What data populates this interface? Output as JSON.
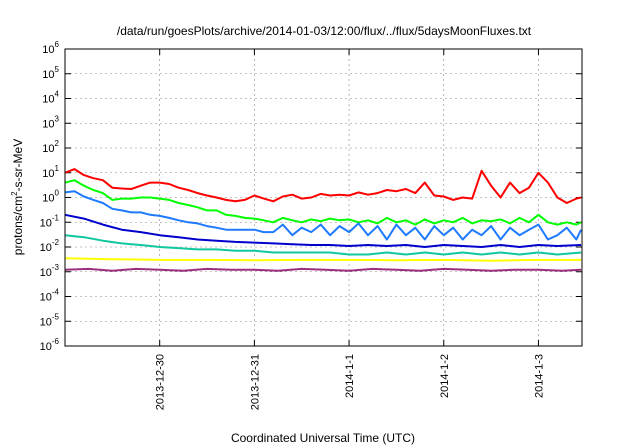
{
  "chart_data": {
    "type": "line",
    "title": "/data/run/goesPlots/archive/2014-01-03/12:00/flux/../flux/5daysMoonFluxes.txt",
    "xlabel": "Coordinated Universal Time (UTC)",
    "ylabel": {
      "prefix": "protons/cm",
      "sup": "2",
      "suffix": "-s-sr-MeV"
    },
    "yscale": "log",
    "ylim": [
      1e-06,
      1000000.0
    ],
    "xlim": [
      "2013-12-29 01:00",
      "2014-01-03 12:00"
    ],
    "grid": "dashed major gridlines",
    "legend": "none",
    "y_ticks": [
      {
        "exp": -6,
        "label": "10",
        "sup": "-6"
      },
      {
        "exp": -5,
        "label": "10",
        "sup": "-5"
      },
      {
        "exp": -4,
        "label": "10",
        "sup": "-4"
      },
      {
        "exp": -3,
        "label": "10",
        "sup": "-3"
      },
      {
        "exp": -2,
        "label": "10",
        "sup": "-2"
      },
      {
        "exp": -1,
        "label": "10",
        "sup": "-1"
      },
      {
        "exp": 0,
        "label": "10",
        "sup": "0"
      },
      {
        "exp": 1,
        "label": "10",
        "sup": "1"
      },
      {
        "exp": 2,
        "label": "10",
        "sup": "2"
      },
      {
        "exp": 3,
        "label": "10",
        "sup": "3"
      },
      {
        "exp": 4,
        "label": "10",
        "sup": "4"
      },
      {
        "exp": 5,
        "label": "10",
        "sup": "5"
      },
      {
        "exp": 6,
        "label": "10",
        "sup": "6"
      }
    ],
    "x_ticks": [
      {
        "day": 1,
        "label": "2013-12-30"
      },
      {
        "day": 2,
        "label": "2013-12-31"
      },
      {
        "day": 3,
        "label": "2014-1-1"
      },
      {
        "day": 4,
        "label": "2014-1-2"
      },
      {
        "day": 5,
        "label": "2014-1-3"
      }
    ],
    "series": [
      {
        "color": "#ff0000",
        "x": [
          0,
          0.1,
          0.2,
          0.3,
          0.4,
          0.5,
          0.6,
          0.7,
          0.8,
          0.9,
          1.0,
          1.1,
          1.2,
          1.3,
          1.4,
          1.5,
          1.6,
          1.7,
          1.8,
          1.9,
          2.0,
          2.1,
          2.2,
          2.3,
          2.4,
          2.5,
          2.6,
          2.7,
          2.8,
          2.9,
          3.0,
          3.1,
          3.2,
          3.3,
          3.4,
          3.5,
          3.6,
          3.7,
          3.8,
          3.9,
          4.0,
          4.1,
          4.2,
          4.3,
          4.4,
          4.5,
          4.6,
          4.7,
          4.8,
          4.9,
          5.0,
          5.1,
          5.2,
          5.3,
          5.4,
          5.45
        ],
        "y": [
          10,
          14,
          8,
          6,
          5,
          2.5,
          2.3,
          2.2,
          3,
          4,
          4,
          3.5,
          2.5,
          2,
          1.5,
          1.2,
          1,
          0.8,
          0.7,
          0.8,
          1.2,
          0.9,
          0.7,
          1.1,
          1.3,
          0.9,
          1,
          1.4,
          1.2,
          1.3,
          1.2,
          1.6,
          1.3,
          1.5,
          2,
          1.8,
          2.2,
          1.5,
          4,
          1.2,
          1.1,
          0.8,
          1,
          0.9,
          12,
          3,
          1,
          4,
          1.5,
          2.5,
          10,
          4,
          1,
          0.6,
          0.9,
          1
        ]
      },
      {
        "color": "#00ff00",
        "x": [
          0,
          0.1,
          0.2,
          0.3,
          0.4,
          0.5,
          0.6,
          0.7,
          0.8,
          0.9,
          1.0,
          1.1,
          1.2,
          1.3,
          1.4,
          1.5,
          1.6,
          1.7,
          1.8,
          1.9,
          2.0,
          2.1,
          2.2,
          2.3,
          2.4,
          2.5,
          2.6,
          2.7,
          2.8,
          2.9,
          3.0,
          3.1,
          3.2,
          3.3,
          3.4,
          3.5,
          3.6,
          3.7,
          3.8,
          3.9,
          4.0,
          4.1,
          4.2,
          4.3,
          4.4,
          4.5,
          4.6,
          4.7,
          4.8,
          4.9,
          5.0,
          5.1,
          5.2,
          5.3,
          5.4,
          5.45
        ],
        "y": [
          4,
          5,
          3,
          2,
          1.5,
          0.8,
          0.9,
          0.9,
          1,
          1,
          0.9,
          0.8,
          0.6,
          0.5,
          0.4,
          0.3,
          0.3,
          0.2,
          0.18,
          0.15,
          0.14,
          0.12,
          0.1,
          0.15,
          0.12,
          0.1,
          0.13,
          0.11,
          0.14,
          0.12,
          0.13,
          0.1,
          0.12,
          0.09,
          0.15,
          0.1,
          0.12,
          0.08,
          0.13,
          0.09,
          0.12,
          0.1,
          0.15,
          0.09,
          0.12,
          0.11,
          0.13,
          0.09,
          0.15,
          0.1,
          0.2,
          0.1,
          0.08,
          0.1,
          0.08,
          0.1
        ]
      },
      {
        "color": "#1e7bff",
        "x": [
          0,
          0.1,
          0.2,
          0.3,
          0.4,
          0.5,
          0.6,
          0.7,
          0.8,
          0.9,
          1.0,
          1.1,
          1.2,
          1.3,
          1.4,
          1.5,
          1.6,
          1.7,
          1.8,
          1.9,
          2.0,
          2.1,
          2.2,
          2.3,
          2.4,
          2.5,
          2.6,
          2.7,
          2.8,
          2.9,
          3.0,
          3.1,
          3.2,
          3.3,
          3.4,
          3.5,
          3.6,
          3.7,
          3.8,
          3.9,
          4.0,
          4.1,
          4.2,
          4.3,
          4.4,
          4.5,
          4.6,
          4.7,
          4.8,
          4.9,
          5.0,
          5.1,
          5.2,
          5.3,
          5.4,
          5.45
        ],
        "y": [
          1.6,
          1.8,
          1.1,
          0.8,
          0.6,
          0.35,
          0.3,
          0.25,
          0.25,
          0.2,
          0.18,
          0.15,
          0.12,
          0.1,
          0.09,
          0.07,
          0.06,
          0.05,
          0.05,
          0.05,
          0.05,
          0.04,
          0.04,
          0.08,
          0.03,
          0.06,
          0.04,
          0.08,
          0.03,
          0.07,
          0.04,
          0.09,
          0.03,
          0.07,
          0.02,
          0.08,
          0.03,
          0.06,
          0.02,
          0.07,
          0.03,
          0.06,
          0.02,
          0.05,
          0.03,
          0.07,
          0.02,
          0.06,
          0.03,
          0.05,
          0.08,
          0.02,
          0.03,
          0.06,
          0.02,
          0.05
        ]
      },
      {
        "color": "#0000cc",
        "x": [
          0,
          0.2,
          0.4,
          0.6,
          0.8,
          1.0,
          1.2,
          1.4,
          1.6,
          1.8,
          2.0,
          2.2,
          2.4,
          2.6,
          2.8,
          3.0,
          3.2,
          3.4,
          3.6,
          3.8,
          4.0,
          4.2,
          4.4,
          4.6,
          4.8,
          5.0,
          5.2,
          5.45
        ],
        "y": [
          0.2,
          0.14,
          0.08,
          0.05,
          0.04,
          0.03,
          0.025,
          0.02,
          0.018,
          0.016,
          0.015,
          0.014,
          0.013,
          0.012,
          0.012,
          0.011,
          0.012,
          0.011,
          0.012,
          0.01,
          0.012,
          0.011,
          0.01,
          0.012,
          0.01,
          0.012,
          0.011,
          0.012
        ]
      },
      {
        "color": "#10c8a0",
        "x": [
          0,
          0.2,
          0.4,
          0.6,
          0.8,
          1.0,
          1.2,
          1.4,
          1.6,
          1.8,
          2.0,
          2.2,
          2.4,
          2.6,
          2.8,
          3.0,
          3.2,
          3.4,
          3.6,
          3.8,
          4.0,
          4.2,
          4.4,
          4.6,
          4.8,
          5.0,
          5.2,
          5.45
        ],
        "y": [
          0.03,
          0.025,
          0.018,
          0.014,
          0.012,
          0.01,
          0.009,
          0.008,
          0.008,
          0.007,
          0.007,
          0.006,
          0.006,
          0.006,
          0.006,
          0.005,
          0.005,
          0.006,
          0.005,
          0.006,
          0.005,
          0.006,
          0.005,
          0.006,
          0.005,
          0.006,
          0.005,
          0.006
        ]
      },
      {
        "color": "#ffff00",
        "x": [
          0,
          0.5,
          1.0,
          1.5,
          2.0,
          2.5,
          3.0,
          3.5,
          4.0,
          4.5,
          5.0,
          5.45
        ],
        "y": [
          0.0035,
          0.0032,
          0.003,
          0.003,
          0.0029,
          0.003,
          0.003,
          0.0029,
          0.003,
          0.0028,
          0.003,
          0.003
        ]
      },
      {
        "color": "#9b2f7f",
        "x": [
          0,
          0.25,
          0.5,
          0.75,
          1.0,
          1.25,
          1.5,
          1.75,
          2.0,
          2.25,
          2.5,
          2.75,
          3.0,
          3.25,
          3.5,
          3.75,
          4.0,
          4.25,
          4.5,
          4.75,
          5.0,
          5.25,
          5.45
        ],
        "y": [
          0.0012,
          0.0013,
          0.0011,
          0.0013,
          0.0012,
          0.0011,
          0.0013,
          0.0012,
          0.0012,
          0.0011,
          0.0013,
          0.0012,
          0.0011,
          0.0013,
          0.0012,
          0.0011,
          0.0013,
          0.0012,
          0.0011,
          0.0012,
          0.0012,
          0.0011,
          0.0012
        ]
      }
    ]
  }
}
